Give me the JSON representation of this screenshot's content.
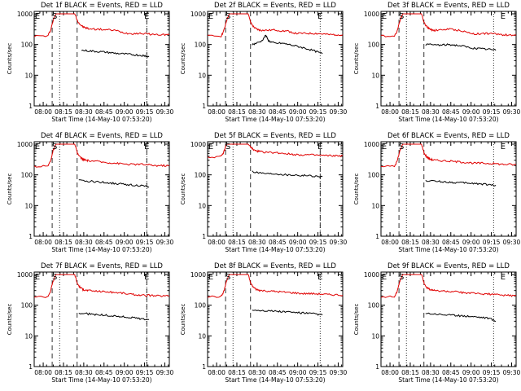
{
  "figure": {
    "y_label": "Counts/sec",
    "x_label": "Start Time (14-May-10 07:53:20)",
    "y_tick_labels": [
      "1000",
      "100",
      "10",
      "1"
    ],
    "x_tick_labels": [
      "08:00",
      "08:15",
      "08:30",
      "08:45",
      "09:00",
      "09:15",
      "09:30"
    ],
    "marker_start": "S",
    "marker_end": "E",
    "colors": {
      "events": "#000000",
      "lld": "#e00000",
      "axes": "#000000"
    }
  },
  "chart_data": [
    {
      "type": "line",
      "title": "Det 1f BLACK = Events, RED = LLD",
      "x_unit": "minutes after 07:53:20",
      "ylim": [
        1,
        1200
      ],
      "y_scale": "log",
      "xlim": [
        0,
        100
      ],
      "markers": {
        "S": 15.2,
        "E": 83.3
      },
      "dashed_lines": [
        13.3,
        31.8,
        83.3
      ],
      "dotted_lines": [
        18.8,
        83.3
      ],
      "series": [
        {
          "name": "LLD",
          "color": "#e00000",
          "x": [
            0,
            10,
            12,
            14,
            16,
            18,
            20,
            22,
            24,
            26,
            28,
            30,
            32,
            34,
            36,
            38,
            40,
            45,
            50,
            55,
            60,
            65,
            70,
            75,
            80,
            85,
            90,
            95,
            100
          ],
          "values": [
            190,
            190,
            280,
            600,
            1000,
            1000,
            1000,
            1000,
            1000,
            1000,
            1000,
            1000,
            600,
            450,
            380,
            350,
            330,
            320,
            310,
            300,
            290,
            250,
            230,
            230,
            230,
            220,
            210,
            210,
            210
          ]
        },
        {
          "name": "Events",
          "color": "#000000",
          "x": [
            35,
            40,
            45,
            50,
            55,
            60,
            65,
            70,
            75,
            80,
            82,
            85
          ],
          "values": [
            65,
            62,
            60,
            58,
            55,
            52,
            50,
            48,
            46,
            44,
            43,
            40
          ]
        }
      ]
    },
    {
      "type": "line",
      "title": "Det 2f BLACK = Events, RED = LLD",
      "x_unit": "minutes after 07:53:20",
      "ylim": [
        1,
        1200
      ],
      "y_scale": "log",
      "xlim": [
        0,
        100
      ],
      "markers": {
        "S": 15.2,
        "E": 83.3
      },
      "dashed_lines": [
        13.3,
        31.8
      ],
      "dotted_lines": [
        18.8,
        83.3
      ],
      "series": [
        {
          "name": "LLD",
          "color": "#e00000",
          "x": [
            0,
            10,
            12,
            14,
            16,
            18,
            20,
            22,
            24,
            26,
            28,
            30,
            32,
            34,
            36,
            38,
            40,
            45,
            50,
            55,
            60,
            65,
            70,
            75,
            80,
            85,
            90,
            95,
            100
          ],
          "values": [
            190,
            190,
            280,
            600,
            1000,
            1000,
            1000,
            1000,
            1000,
            1000,
            1000,
            1000,
            500,
            380,
            320,
            300,
            290,
            290,
            300,
            280,
            270,
            230,
            230,
            230,
            230,
            220,
            210,
            210,
            210
          ]
        },
        {
          "name": "Events",
          "color": "#000000",
          "x": [
            33,
            36,
            40,
            43,
            45,
            47,
            50,
            55,
            60,
            65,
            70,
            75,
            80,
            85
          ],
          "values": [
            100,
            110,
            130,
            200,
            135,
            120,
            110,
            110,
            100,
            90,
            80,
            70,
            60,
            50
          ]
        }
      ]
    },
    {
      "type": "line",
      "title": "Det 3f BLACK = Events, RED = LLD",
      "x_unit": "minutes after 07:53:20",
      "ylim": [
        1,
        1200
      ],
      "y_scale": "log",
      "xlim": [
        0,
        100
      ],
      "markers": {
        "S": 15.2,
        "E": 90.3
      },
      "dashed_lines": [
        13.3,
        31.8
      ],
      "dotted_lines": [
        18.8,
        83.3
      ],
      "series": [
        {
          "name": "LLD",
          "color": "#e00000",
          "x": [
            0,
            10,
            12,
            14,
            16,
            18,
            20,
            22,
            24,
            26,
            28,
            30,
            32,
            34,
            36,
            38,
            40,
            45,
            50,
            55,
            60,
            65,
            70,
            75,
            80,
            85,
            90,
            95,
            100
          ],
          "values": [
            190,
            190,
            280,
            600,
            1000,
            1000,
            1000,
            1000,
            1000,
            1000,
            1000,
            1000,
            500,
            380,
            320,
            300,
            290,
            300,
            320,
            300,
            280,
            240,
            220,
            230,
            230,
            220,
            210,
            200,
            200
          ]
        },
        {
          "name": "Events",
          "color": "#000000",
          "x": [
            33,
            40,
            45,
            50,
            55,
            60,
            65,
            70,
            75,
            80,
            85
          ],
          "values": [
            100,
            98,
            95,
            100,
            95,
            90,
            80,
            75,
            72,
            70,
            65
          ]
        }
      ]
    },
    {
      "type": "line",
      "title": "Det 4f BLACK = Events, RED = LLD",
      "x_unit": "minutes after 07:53:20",
      "ylim": [
        1,
        1200
      ],
      "y_scale": "log",
      "xlim": [
        0,
        100
      ],
      "markers": {
        "S": 15.2,
        "E": 83.3
      },
      "dashed_lines": [
        13.3,
        31.8,
        83.3
      ],
      "dotted_lines": [
        18.8,
        83.3
      ],
      "series": [
        {
          "name": "LLD",
          "color": "#e00000",
          "x": [
            0,
            10,
            12,
            14,
            16,
            18,
            20,
            22,
            24,
            26,
            28,
            30,
            32,
            34,
            36,
            38,
            40,
            45,
            50,
            55,
            60,
            65,
            70,
            75,
            80,
            85,
            90,
            95,
            100
          ],
          "values": [
            190,
            190,
            280,
            600,
            1000,
            1000,
            1000,
            1000,
            1000,
            1000,
            1000,
            1000,
            500,
            380,
            320,
            300,
            290,
            280,
            260,
            250,
            240,
            230,
            220,
            220,
            220,
            210,
            200,
            200,
            200
          ]
        },
        {
          "name": "Events",
          "color": "#000000",
          "x": [
            33,
            40,
            45,
            50,
            55,
            60,
            65,
            70,
            75,
            80,
            85
          ],
          "values": [
            65,
            62,
            60,
            58,
            55,
            52,
            50,
            48,
            46,
            44,
            40
          ]
        }
      ]
    },
    {
      "type": "line",
      "title": "Det 5f BLACK = Events, RED = LLD",
      "x_unit": "minutes after 07:53:20",
      "ylim": [
        1,
        1200
      ],
      "y_scale": "log",
      "xlim": [
        0,
        100
      ],
      "markers": {
        "S": 15.2,
        "E": 83.3
      },
      "dashed_lines": [
        13.3,
        31.8,
        83.3
      ],
      "dotted_lines": [
        18.8,
        83.3
      ],
      "series": [
        {
          "name": "LLD",
          "color": "#e00000",
          "x": [
            0,
            10,
            12,
            14,
            16,
            18,
            20,
            22,
            24,
            26,
            28,
            30,
            32,
            34,
            36,
            38,
            40,
            45,
            50,
            55,
            60,
            65,
            70,
            75,
            80,
            85,
            90,
            95,
            100
          ],
          "values": [
            380,
            390,
            550,
            1000,
            1000,
            1000,
            1000,
            1000,
            1000,
            1000,
            1000,
            1000,
            800,
            650,
            600,
            580,
            560,
            540,
            530,
            510,
            480,
            460,
            450,
            450,
            440,
            430,
            420,
            420,
            420
          ]
        },
        {
          "name": "Events",
          "color": "#000000",
          "x": [
            33,
            40,
            45,
            50,
            55,
            60,
            65,
            70,
            75,
            80,
            85
          ],
          "values": [
            130,
            115,
            110,
            110,
            105,
            100,
            100,
            95,
            95,
            90,
            88
          ]
        }
      ]
    },
    {
      "type": "line",
      "title": "Det 6f BLACK = Events, RED = LLD",
      "x_unit": "minutes after 07:53:20",
      "ylim": [
        1,
        1200
      ],
      "y_scale": "log",
      "xlim": [
        0,
        100
      ],
      "markers": {
        "S": 15.2,
        "E": 90.3
      },
      "dashed_lines": [
        13.3,
        31.8
      ],
      "dotted_lines": [
        18.8,
        83.3
      ],
      "series": [
        {
          "name": "LLD",
          "color": "#e00000",
          "x": [
            0,
            10,
            12,
            14,
            16,
            18,
            20,
            22,
            24,
            26,
            28,
            30,
            32,
            34,
            36,
            38,
            40,
            45,
            50,
            55,
            60,
            65,
            70,
            75,
            80,
            85,
            90,
            95,
            100
          ],
          "values": [
            190,
            190,
            280,
            600,
            1000,
            1000,
            1000,
            1000,
            1000,
            1000,
            1000,
            1000,
            500,
            380,
            330,
            310,
            300,
            290,
            280,
            270,
            260,
            250,
            240,
            240,
            235,
            230,
            220,
            220,
            210
          ]
        },
        {
          "name": "Events",
          "color": "#000000",
          "x": [
            33,
            40,
            45,
            50,
            55,
            60,
            65,
            70,
            75,
            80,
            85
          ],
          "values": [
            65,
            62,
            60,
            58,
            56,
            55,
            54,
            52,
            50,
            48,
            46
          ]
        }
      ]
    },
    {
      "type": "line",
      "title": "Det 7f BLACK = Events, RED = LLD",
      "x_unit": "minutes after 07:53:20",
      "ylim": [
        1,
        1200
      ],
      "y_scale": "log",
      "xlim": [
        0,
        100
      ],
      "markers": {
        "S": 15.2,
        "E": 83.3
      },
      "dashed_lines": [
        13.3,
        31.8,
        83.3
      ],
      "dotted_lines": [
        18.8,
        83.3
      ],
      "series": [
        {
          "name": "LLD",
          "color": "#e00000",
          "x": [
            0,
            10,
            12,
            14,
            16,
            18,
            20,
            22,
            24,
            26,
            28,
            30,
            32,
            34,
            36,
            38,
            40,
            45,
            50,
            55,
            60,
            65,
            70,
            75,
            80,
            85,
            90,
            95,
            100
          ],
          "values": [
            190,
            190,
            280,
            600,
            1000,
            1000,
            1000,
            1000,
            1000,
            1000,
            1000,
            1000,
            500,
            380,
            330,
            310,
            300,
            290,
            280,
            270,
            260,
            250,
            230,
            220,
            210,
            210,
            200,
            200,
            200
          ]
        },
        {
          "name": "Events",
          "color": "#000000",
          "x": [
            33,
            40,
            45,
            50,
            55,
            60,
            65,
            70,
            75,
            80,
            85
          ],
          "values": [
            55,
            52,
            50,
            48,
            46,
            44,
            42,
            40,
            38,
            36,
            34
          ]
        }
      ]
    },
    {
      "type": "line",
      "title": "Det 8f BLACK = Events, RED = LLD",
      "x_unit": "minutes after 07:53:20",
      "ylim": [
        1,
        1200
      ],
      "y_scale": "log",
      "xlim": [
        0,
        100
      ],
      "markers": {
        "S": 15.2,
        "E": 83.3
      },
      "dashed_lines": [
        13.3,
        31.8
      ],
      "dotted_lines": [
        18.8,
        83.3
      ],
      "series": [
        {
          "name": "LLD",
          "color": "#e00000",
          "x": [
            0,
            10,
            12,
            14,
            16,
            18,
            20,
            22,
            24,
            26,
            28,
            30,
            32,
            34,
            36,
            38,
            40,
            45,
            50,
            55,
            60,
            65,
            70,
            75,
            80,
            85,
            90,
            95,
            100
          ],
          "values": [
            190,
            190,
            280,
            600,
            1000,
            1000,
            1000,
            1000,
            1000,
            1000,
            1000,
            1000,
            500,
            380,
            330,
            310,
            300,
            290,
            280,
            270,
            260,
            250,
            240,
            240,
            235,
            230,
            220,
            220,
            210
          ]
        },
        {
          "name": "Events",
          "color": "#000000",
          "x": [
            33,
            40,
            45,
            50,
            55,
            60,
            65,
            70,
            75,
            80,
            85
          ],
          "values": [
            70,
            68,
            66,
            64,
            62,
            60,
            58,
            56,
            54,
            52,
            48
          ]
        }
      ]
    },
    {
      "type": "line",
      "title": "Det 9f BLACK = Events, RED = LLD",
      "x_unit": "minutes after 07:53:20",
      "ylim": [
        1,
        1200
      ],
      "y_scale": "log",
      "xlim": [
        0,
        100
      ],
      "markers": {
        "S": 15.2,
        "E": 90.3
      },
      "dashed_lines": [
        13.3,
        31.8
      ],
      "dotted_lines": [
        18.8,
        83.3
      ],
      "series": [
        {
          "name": "LLD",
          "color": "#e00000",
          "x": [
            0,
            10,
            12,
            14,
            16,
            18,
            20,
            22,
            24,
            26,
            28,
            30,
            32,
            34,
            36,
            38,
            40,
            45,
            50,
            55,
            60,
            65,
            70,
            75,
            80,
            85,
            90,
            95,
            100
          ],
          "values": [
            190,
            190,
            280,
            600,
            1000,
            1000,
            1000,
            1000,
            1000,
            1000,
            1000,
            1000,
            500,
            380,
            330,
            310,
            300,
            290,
            280,
            270,
            260,
            250,
            240,
            235,
            230,
            220,
            210,
            210,
            200
          ]
        },
        {
          "name": "Events",
          "color": "#000000",
          "x": [
            33,
            40,
            45,
            50,
            55,
            60,
            65,
            70,
            75,
            80,
            85
          ],
          "values": [
            55,
            52,
            50,
            48,
            46,
            45,
            44,
            42,
            40,
            38,
            30
          ]
        }
      ]
    }
  ]
}
